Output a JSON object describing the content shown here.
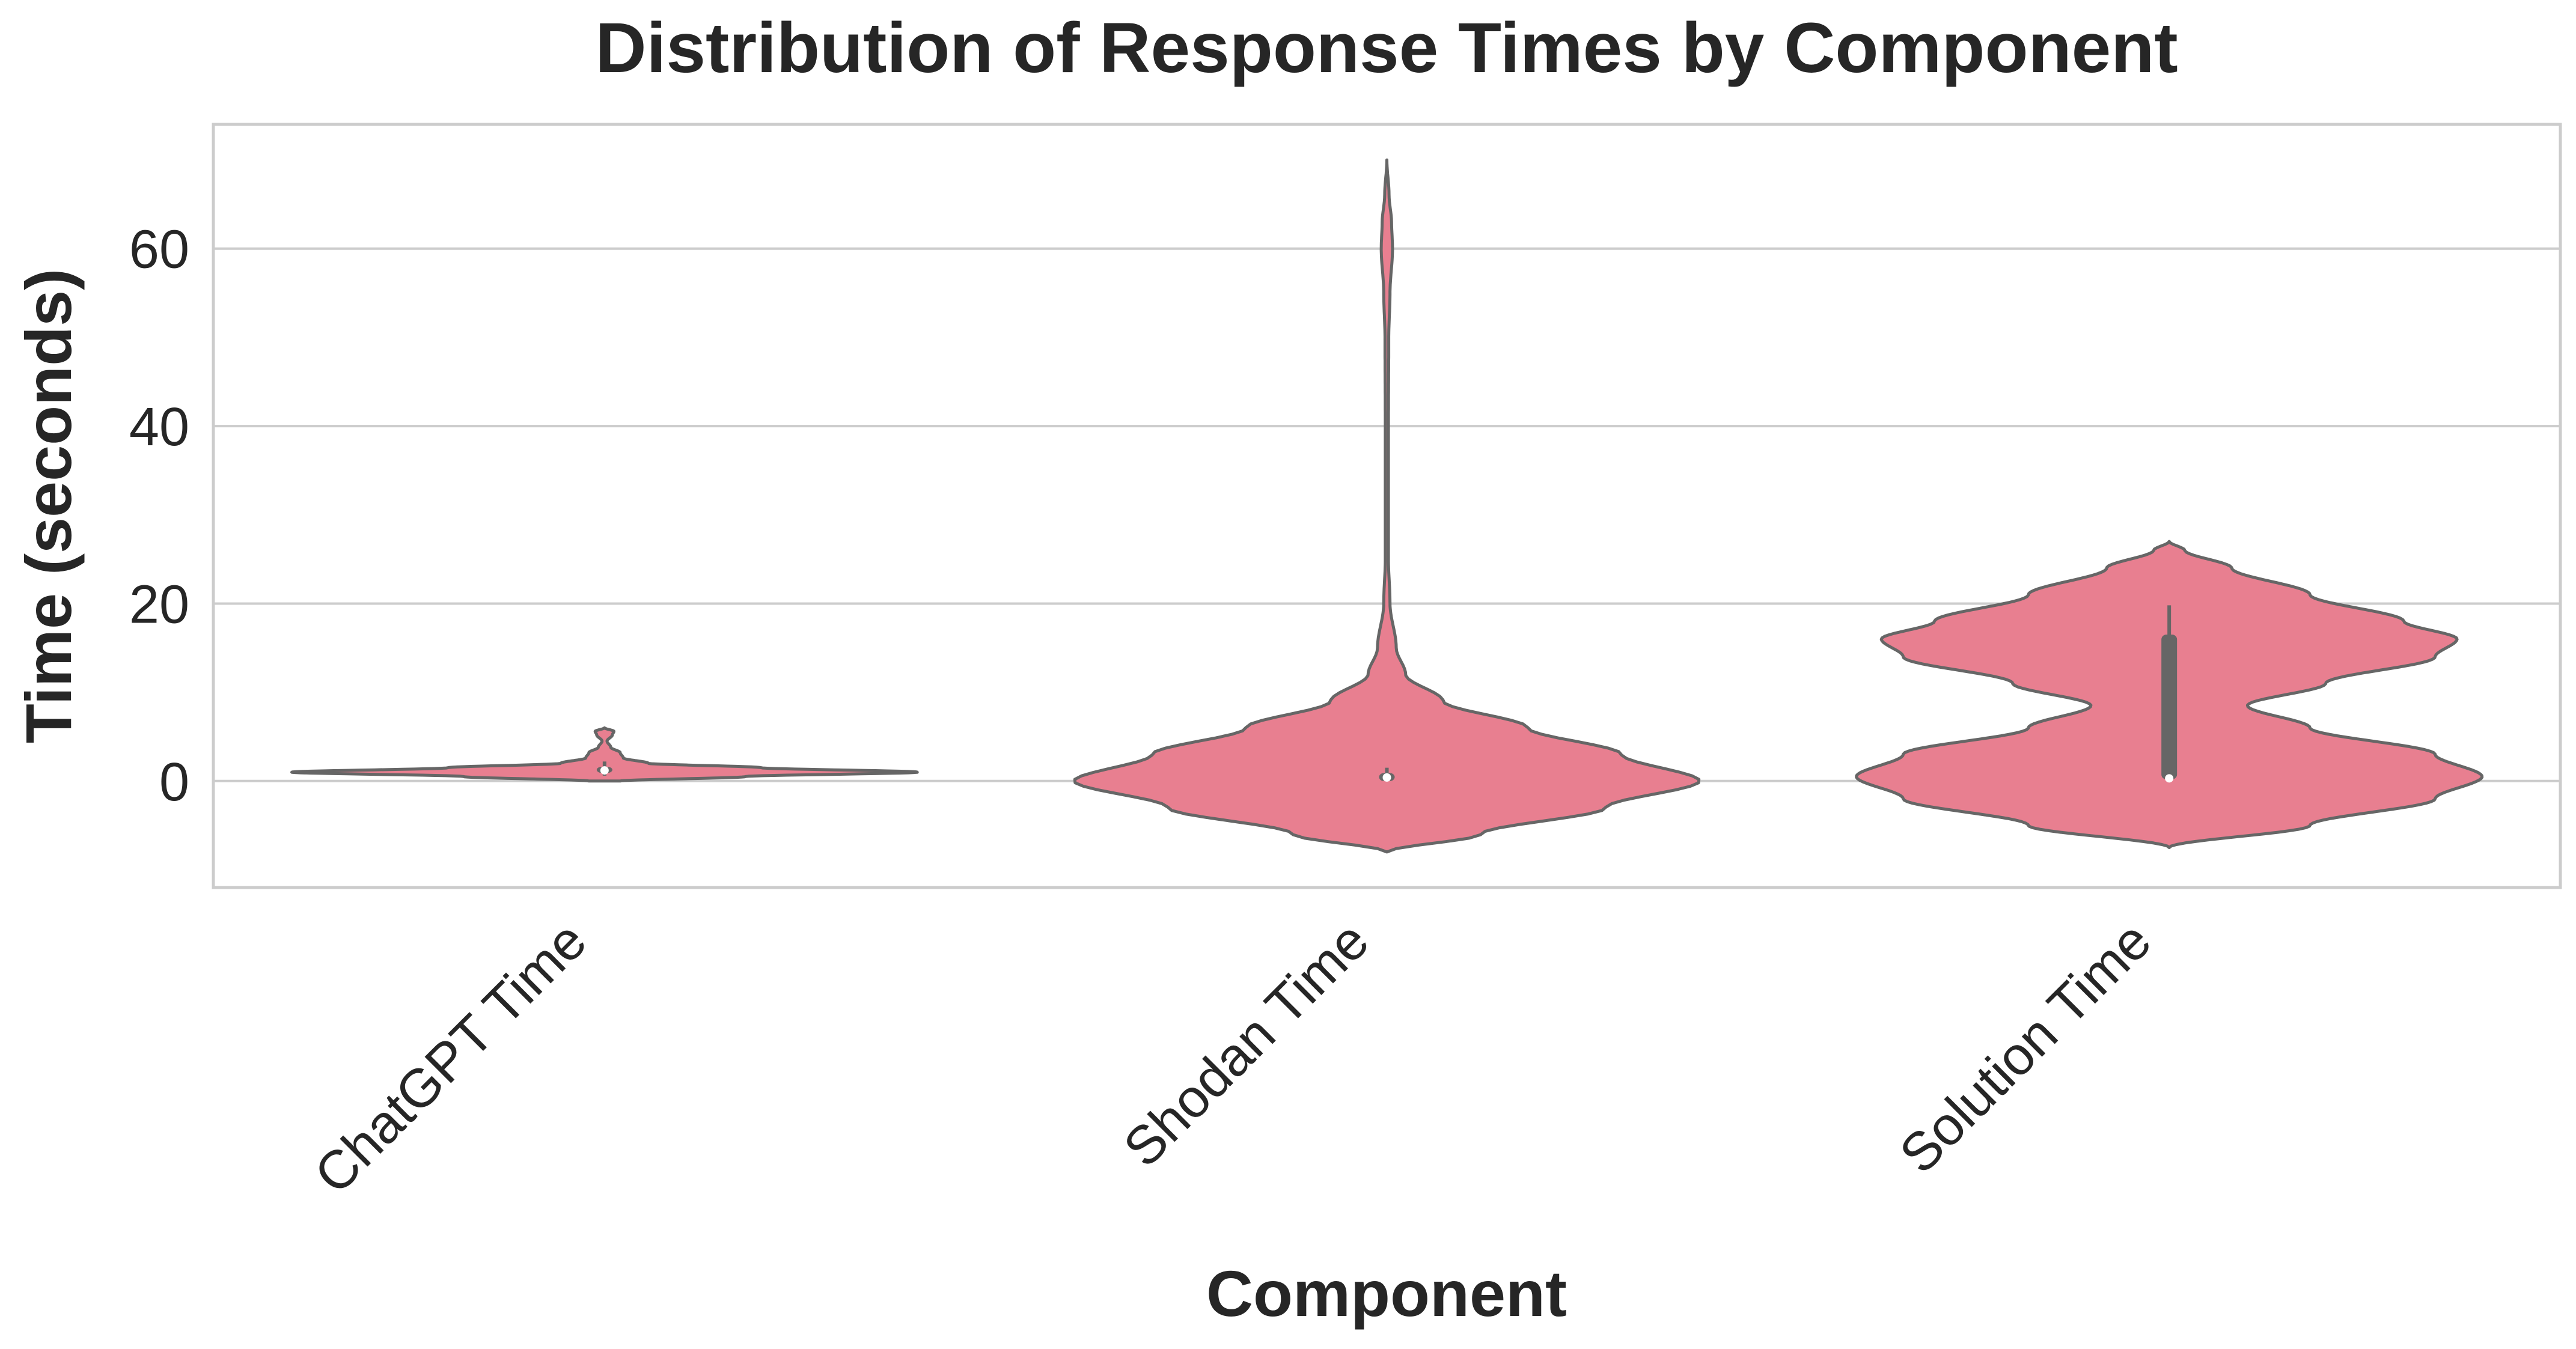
{
  "chart_data": {
    "type": "violin",
    "title": "Distribution of Response Times by Component",
    "xlabel": "Component",
    "ylabel": "Time (seconds)",
    "ylim": [
      -12,
      74
    ],
    "yticks": [
      0,
      20,
      40,
      60
    ],
    "grid": "horizontal",
    "fill_color": "#e87f90",
    "edge_color": "#666666",
    "categories": [
      "ChatGPT Time",
      "Shodan Time",
      "Solution Time"
    ],
    "violins": [
      {
        "category": "ChatGPT Time",
        "y_range": [
          0,
          6
        ],
        "profile": [
          [
            0,
            0.05
          ],
          [
            0.5,
            0.45
          ],
          [
            1.0,
            1.0
          ],
          [
            1.5,
            0.5
          ],
          [
            2.0,
            0.14
          ],
          [
            2.6,
            0.06
          ],
          [
            3.2,
            0.05
          ],
          [
            3.8,
            0.02
          ],
          [
            4.5,
            0.008
          ],
          [
            5.2,
            0.025
          ],
          [
            5.6,
            0.03
          ],
          [
            6.0,
            0.0
          ]
        ],
        "q1": 1.0,
        "median": 1.2,
        "q3": 1.6,
        "whisker_low": 0.6,
        "whisker_high": 2.2
      },
      {
        "category": "Shodan Time",
        "y_range": [
          -8,
          70
        ],
        "profile": [
          [
            -8,
            0.0
          ],
          [
            -6,
            0.3
          ],
          [
            -3,
            0.7
          ],
          [
            0,
            1.0
          ],
          [
            3,
            0.75
          ],
          [
            6,
            0.45
          ],
          [
            9,
            0.18
          ],
          [
            12,
            0.06
          ],
          [
            15,
            0.03
          ],
          [
            20,
            0.01
          ],
          [
            25,
            0.005
          ],
          [
            30,
            0.005
          ],
          [
            40,
            0.005
          ],
          [
            50,
            0.006
          ],
          [
            55,
            0.01
          ],
          [
            60,
            0.018
          ],
          [
            63,
            0.015
          ],
          [
            66,
            0.007
          ],
          [
            70,
            0.0
          ]
        ],
        "q1": 0.0,
        "median": 0.4,
        "q3": 0.9,
        "whisker_low": 0.0,
        "whisker_high": 1.5
      },
      {
        "category": "Solution Time",
        "y_range": [
          -7.5,
          27
        ],
        "profile": [
          [
            -7.5,
            0.0
          ],
          [
            -5,
            0.45
          ],
          [
            -2,
            0.85
          ],
          [
            0.5,
            1.0
          ],
          [
            3,
            0.85
          ],
          [
            6,
            0.45
          ],
          [
            8.5,
            0.25
          ],
          [
            11,
            0.5
          ],
          [
            14,
            0.85
          ],
          [
            16,
            0.92
          ],
          [
            18,
            0.75
          ],
          [
            21,
            0.45
          ],
          [
            24,
            0.2
          ],
          [
            26,
            0.05
          ],
          [
            27,
            0.0
          ]
        ],
        "q1": 0.2,
        "median": 0.3,
        "q3": 16.5,
        "whisker_low": 0.0,
        "whisker_high": 19.8
      }
    ]
  }
}
